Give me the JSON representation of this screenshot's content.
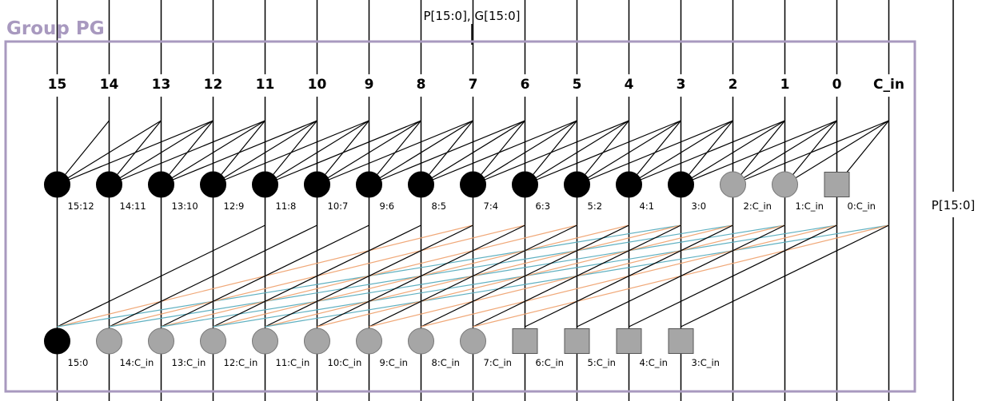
{
  "diagram": {
    "top_label": "P[15:0], G[15:0]",
    "group_label": "Group PG",
    "side_label": "P[15:0]",
    "columns": [
      "15",
      "14",
      "13",
      "12",
      "11",
      "10",
      "9",
      "8",
      "7",
      "6",
      "5",
      "4",
      "3",
      "2",
      "1",
      "0",
      "C_in"
    ],
    "stage1_nodes": [
      {
        "label": "15:12",
        "shape": "black-circle",
        "inputs": [
          "15",
          "14",
          "13",
          "12"
        ]
      },
      {
        "label": "14:11",
        "shape": "black-circle",
        "inputs": [
          "14",
          "13",
          "12",
          "11"
        ]
      },
      {
        "label": "13:10",
        "shape": "black-circle",
        "inputs": [
          "13",
          "12",
          "11",
          "10"
        ]
      },
      {
        "label": "12:9",
        "shape": "black-circle",
        "inputs": [
          "12",
          "11",
          "10",
          "9"
        ]
      },
      {
        "label": "11:8",
        "shape": "black-circle",
        "inputs": [
          "11",
          "10",
          "9",
          "8"
        ]
      },
      {
        "label": "10:7",
        "shape": "black-circle",
        "inputs": [
          "10",
          "9",
          "8",
          "7"
        ]
      },
      {
        "label": "9:6",
        "shape": "black-circle",
        "inputs": [
          "9",
          "8",
          "7",
          "6"
        ]
      },
      {
        "label": "8:5",
        "shape": "black-circle",
        "inputs": [
          "8",
          "7",
          "6",
          "5"
        ]
      },
      {
        "label": "7:4",
        "shape": "black-circle",
        "inputs": [
          "7",
          "6",
          "5",
          "4"
        ]
      },
      {
        "label": "6:3",
        "shape": "black-circle",
        "inputs": [
          "6",
          "5",
          "4",
          "3"
        ]
      },
      {
        "label": "5:2",
        "shape": "black-circle",
        "inputs": [
          "5",
          "4",
          "3",
          "2"
        ]
      },
      {
        "label": "4:1",
        "shape": "black-circle",
        "inputs": [
          "4",
          "3",
          "2",
          "1"
        ]
      },
      {
        "label": "3:0",
        "shape": "black-circle",
        "inputs": [
          "3",
          "2",
          "1",
          "0"
        ]
      },
      {
        "label": "2:C_in",
        "shape": "gray-circle",
        "inputs": [
          "2",
          "1",
          "0",
          "C_in"
        ]
      },
      {
        "label": "1:C_in",
        "shape": "gray-circle",
        "inputs": [
          "1",
          "0",
          "C_in"
        ]
      },
      {
        "label": "0:C_in",
        "shape": "gray-square",
        "inputs": [
          "0",
          "C_in"
        ]
      }
    ],
    "stage2_nodes": [
      {
        "label": "15:0",
        "shape": "black-circle",
        "inputs": [
          "15",
          "11",
          "7",
          "3"
        ]
      },
      {
        "label": "14:C_in",
        "shape": "gray-circle",
        "inputs": [
          "14",
          "10",
          "6",
          "2"
        ]
      },
      {
        "label": "13:C_in",
        "shape": "gray-circle",
        "inputs": [
          "13",
          "9",
          "5",
          "1"
        ]
      },
      {
        "label": "12:C_in",
        "shape": "gray-circle",
        "inputs": [
          "12",
          "8",
          "4",
          "0"
        ]
      },
      {
        "label": "11:C_in",
        "shape": "gray-circle",
        "inputs": [
          "11",
          "7",
          "3",
          "C_in"
        ]
      },
      {
        "label": "10:C_in",
        "shape": "gray-circle",
        "inputs": [
          "10",
          "6",
          "2"
        ]
      },
      {
        "label": "9:C_in",
        "shape": "gray-circle",
        "inputs": [
          "9",
          "5",
          "1"
        ]
      },
      {
        "label": "8:C_in",
        "shape": "gray-circle",
        "inputs": [
          "8",
          "4",
          "0"
        ]
      },
      {
        "label": "7:C_in",
        "shape": "gray-circle",
        "inputs": [
          "7",
          "3",
          "C_in"
        ]
      },
      {
        "label": "6:C_in",
        "shape": "gray-square",
        "inputs": [
          "6",
          "2"
        ]
      },
      {
        "label": "5:C_in",
        "shape": "gray-square",
        "inputs": [
          "5",
          "1"
        ]
      },
      {
        "label": "4:C_in",
        "shape": "gray-square",
        "inputs": [
          "4",
          "0"
        ]
      },
      {
        "label": "3:C_in",
        "shape": "gray-square",
        "inputs": [
          "3",
          "C_in"
        ]
      }
    ],
    "colors": {
      "frame": "#a899bf",
      "black_node": "#000000",
      "gray_node": "#a6a6a6",
      "wire": "#000000",
      "wire_orange": "#f0a878",
      "wire_teal": "#5fb0c0"
    }
  }
}
